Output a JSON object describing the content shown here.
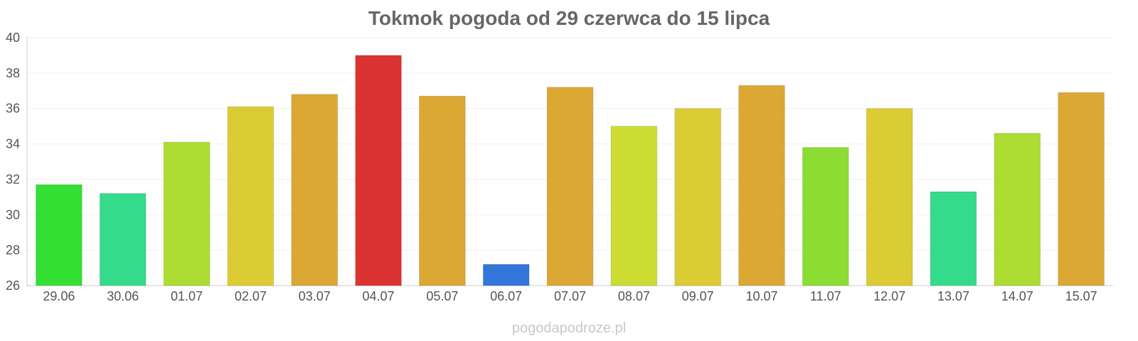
{
  "chart_data": {
    "type": "bar",
    "title": "Tokmok pogoda od 29 czerwca do 15 lipca",
    "xlabel": "",
    "ylabel": "",
    "ylim": [
      26,
      40
    ],
    "yticks": [
      26,
      28,
      30,
      32,
      34,
      36,
      38,
      40
    ],
    "grid": true,
    "categories": [
      "29.06",
      "30.06",
      "01.07",
      "02.07",
      "03.07",
      "04.07",
      "05.07",
      "06.07",
      "07.07",
      "08.07",
      "09.07",
      "10.07",
      "11.07",
      "12.07",
      "13.07",
      "14.07",
      "15.07"
    ],
    "values": [
      31.7,
      31.2,
      34.1,
      36.1,
      36.8,
      39.0,
      36.7,
      27.2,
      37.2,
      35.0,
      36.0,
      37.3,
      33.8,
      36.0,
      31.3,
      34.6,
      36.9
    ],
    "colors": [
      "#33e033",
      "#33db8a",
      "#addd33",
      "#dbcc33",
      "#dba833",
      "#db3333",
      "#dba833",
      "#3377db",
      "#dba833",
      "#cddd33",
      "#dbcc33",
      "#dba833",
      "#8bdd33",
      "#dbcc33",
      "#33db8a",
      "#addd33",
      "#dba833"
    ]
  },
  "footer": {
    "watermark": "pogodapodroze.pl"
  }
}
